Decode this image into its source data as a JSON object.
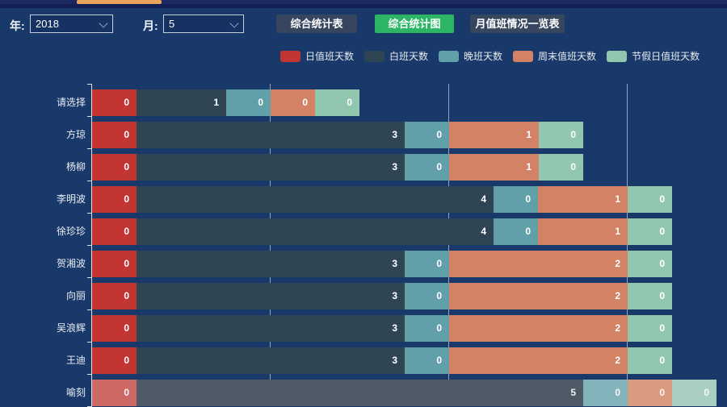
{
  "toolbar": {
    "year_label": "年:",
    "year_value": "2018",
    "month_label": "月:",
    "month_value": "5",
    "buttons": [
      {
        "label": "综合统计表",
        "active": false
      },
      {
        "label": "综合统计图",
        "active": true
      },
      {
        "label": "月值班情况一览表",
        "active": false
      }
    ]
  },
  "colors": {
    "background": "#1a396b",
    "topbar": "#1b2960",
    "scroll_thumb": "#e9a55d",
    "button_default": "#36465f",
    "button_active": "#2bb565",
    "axis": "rgba(255,255,255,0.85)",
    "gridline": "rgba(255,255,255,0.55)"
  },
  "chart_data": {
    "type": "bar",
    "orientation": "horizontal",
    "stacked": true,
    "title": "",
    "categories": [
      "请选择",
      "方琼",
      "杨柳",
      "李明波",
      "徐珍珍",
      "贺湘波",
      "向丽",
      "吴浪辉",
      "王迪",
      "喻刻"
    ],
    "series": [
      {
        "name": "日值班天数",
        "color": "#c23531",
        "dim_color": "#cd6964",
        "values": [
          0,
          0,
          0,
          0,
          0,
          0,
          0,
          0,
          0,
          0
        ]
      },
      {
        "name": "白班天数",
        "color": "#2f4554",
        "dim_color": "#4e5b66",
        "values": [
          1,
          3,
          3,
          4,
          4,
          3,
          3,
          3,
          3,
          5
        ]
      },
      {
        "name": "晚班天数",
        "color": "#61a0a8",
        "dim_color": "#84b4bb",
        "values": [
          0,
          0,
          0,
          0,
          0,
          0,
          0,
          0,
          0,
          0
        ]
      },
      {
        "name": "周末值班天数",
        "color": "#d48265",
        "dim_color": "#d99b80",
        "values": [
          0,
          1,
          1,
          1,
          1,
          2,
          2,
          2,
          2,
          0
        ]
      },
      {
        "name": "节假日值班天数",
        "color": "#91c7ae",
        "dim_color": "#a8cfbf",
        "values": [
          0,
          0,
          0,
          0,
          0,
          0,
          0,
          0,
          0,
          0
        ]
      }
    ],
    "xlim": [
      0,
      7.12
    ],
    "gridline_values": [
      2,
      4,
      6
    ],
    "zero_display_units": 0.5,
    "dimmed_rows": [
      9
    ],
    "legend_position": "top",
    "value_labels": "inside-right",
    "grid": true
  }
}
